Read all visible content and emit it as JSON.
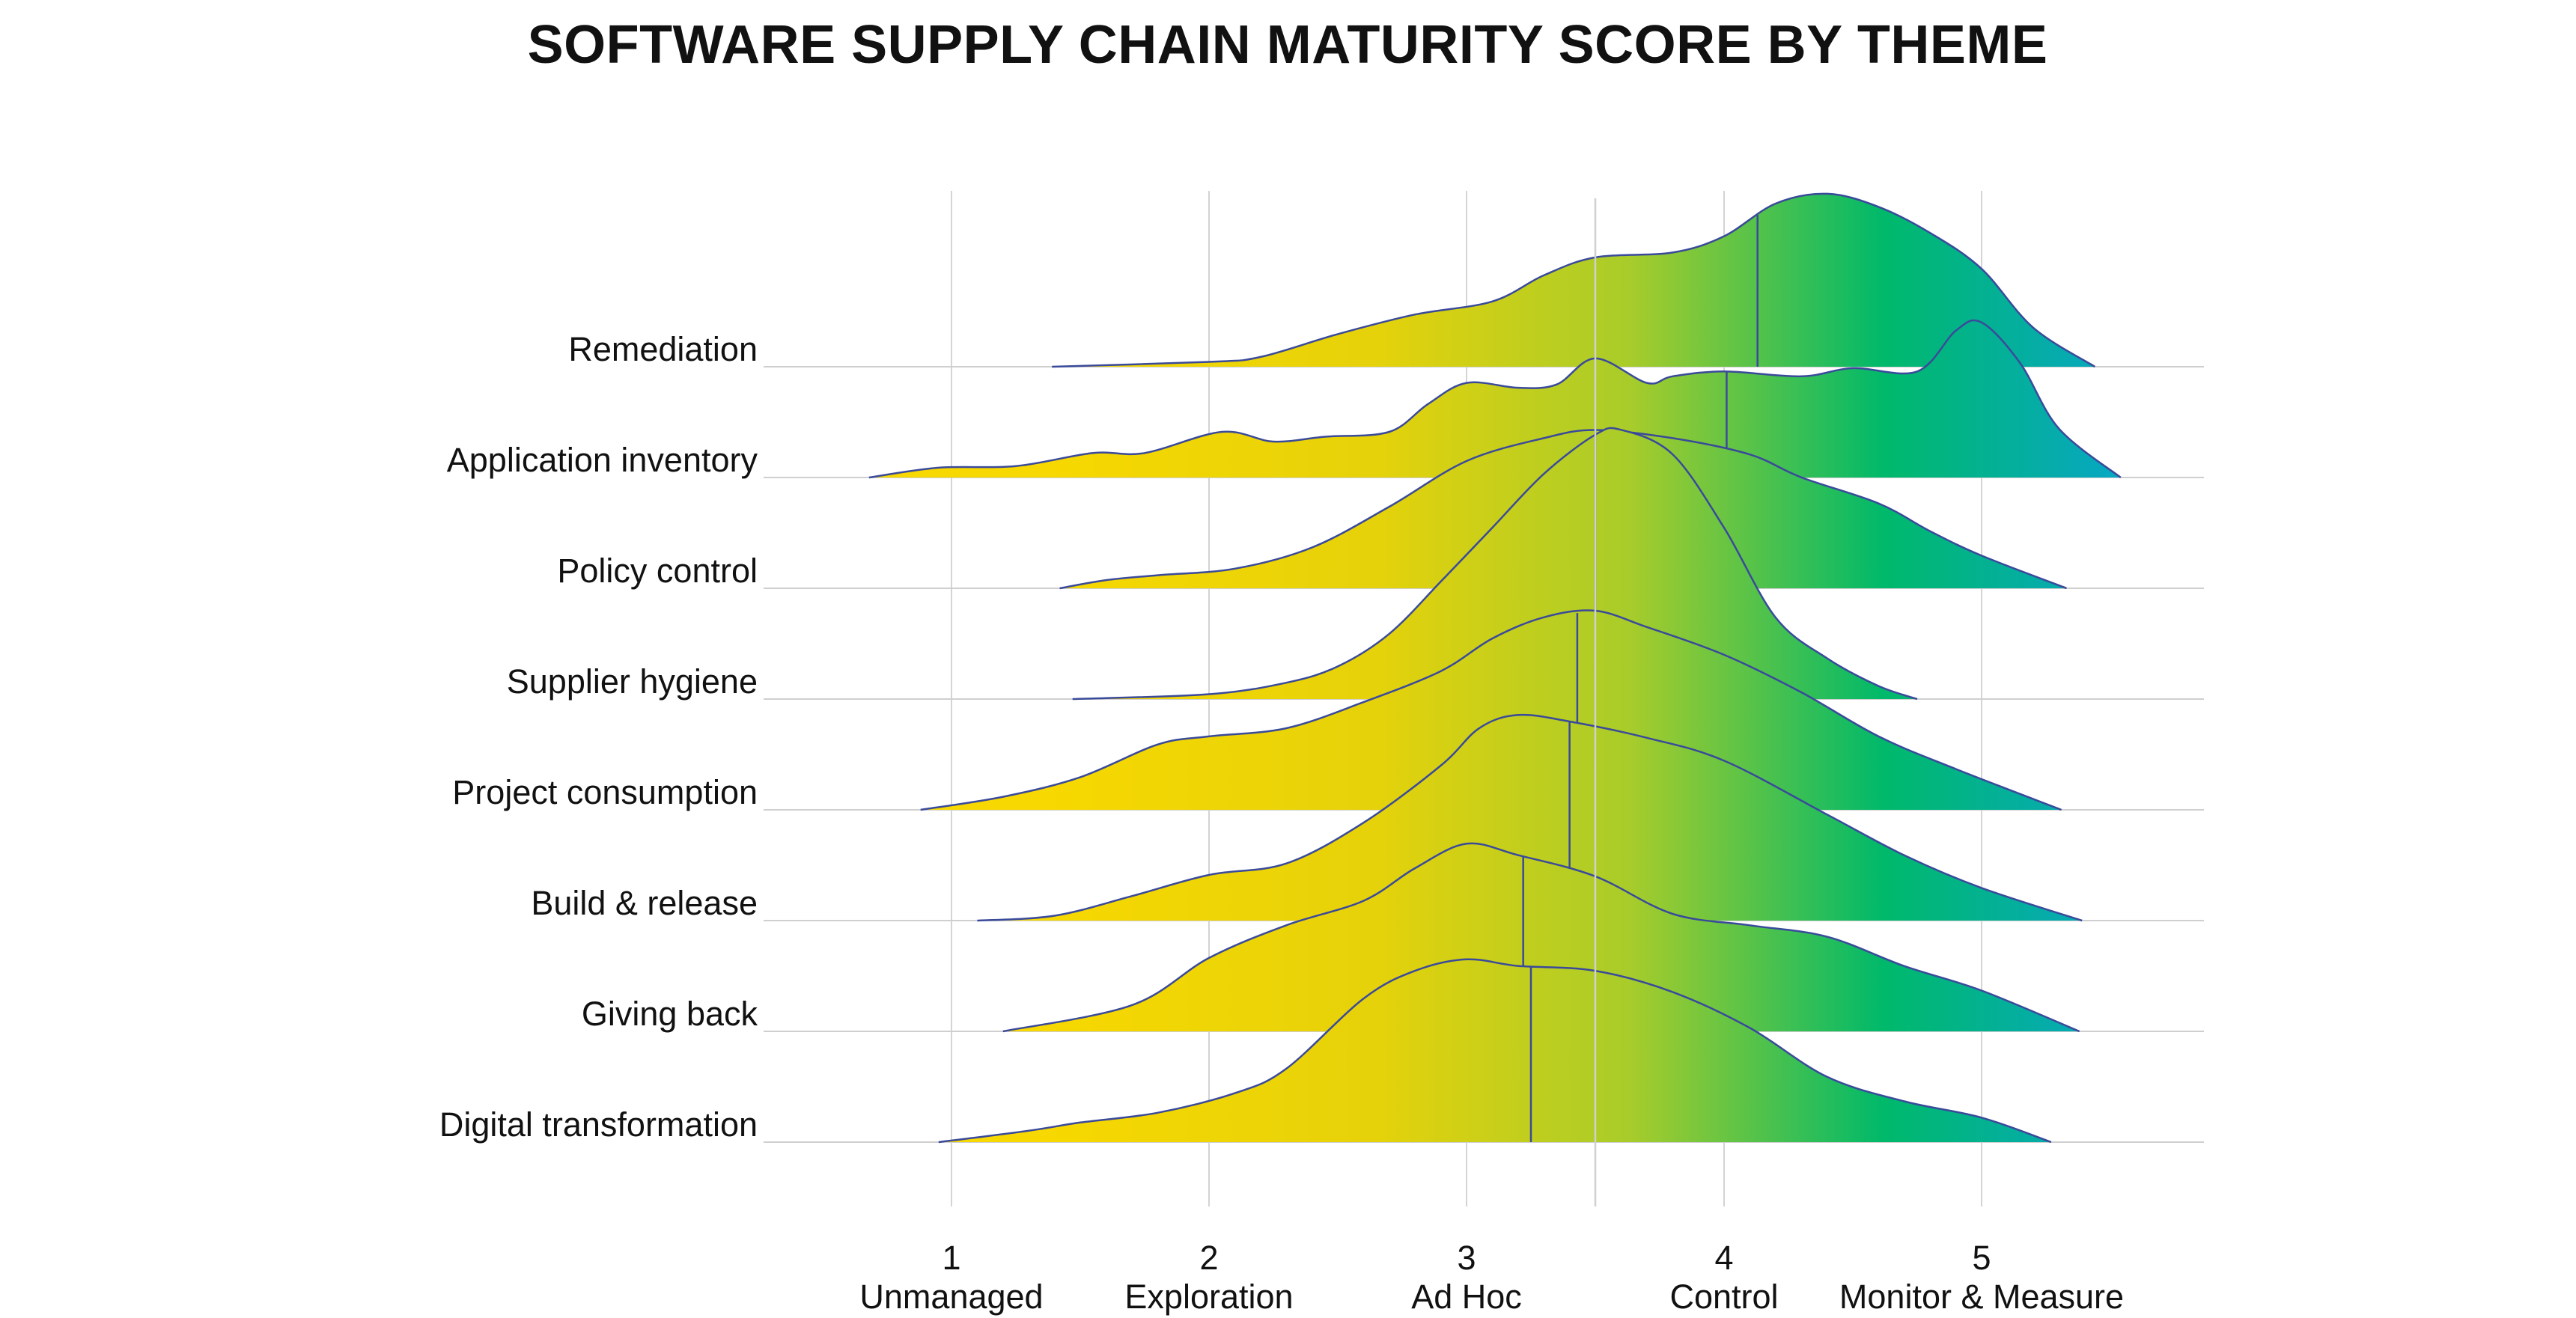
{
  "chart_data": {
    "type": "ridgeline",
    "title": "SOFTWARE SUPPLY CHAIN MATURITY SCORE BY THEME",
    "xlim": [
      0.5,
      5.9
    ],
    "x_ticks": [
      {
        "value": 1,
        "number": "1",
        "name": "Unmanaged"
      },
      {
        "value": 2,
        "number": "2",
        "name": "Exploration"
      },
      {
        "value": 3,
        "number": "3",
        "name": "Ad Hoc"
      },
      {
        "value": 4,
        "number": "4",
        "name": "Control"
      },
      {
        "value": 5,
        "number": "5",
        "name": "Monitor & Measure"
      }
    ],
    "reference_line": 3.5,
    "grid": "vertical",
    "gradient_colors": [
      "#f7d800",
      "#8ec63f",
      "#00b96a",
      "#0aa0e6"
    ],
    "outline_color": "#3a4a9a",
    "series": [
      {
        "label": "Remediation",
        "median": 4.13,
        "density": [
          [
            1.39,
            0.0
          ],
          [
            2.0,
            0.03
          ],
          [
            2.2,
            0.06
          ],
          [
            2.5,
            0.2
          ],
          [
            2.8,
            0.32
          ],
          [
            3.1,
            0.4
          ],
          [
            3.3,
            0.56
          ],
          [
            3.5,
            0.67
          ],
          [
            3.8,
            0.7
          ],
          [
            4.0,
            0.8
          ],
          [
            4.2,
            1.0
          ],
          [
            4.4,
            1.06
          ],
          [
            4.6,
            0.98
          ],
          [
            4.8,
            0.82
          ],
          [
            5.0,
            0.6
          ],
          [
            5.2,
            0.24
          ],
          [
            5.44,
            0.0
          ]
        ]
      },
      {
        "label": "Application inventory",
        "median": 4.01,
        "density": [
          [
            0.68,
            0.0
          ],
          [
            0.95,
            0.06
          ],
          [
            1.25,
            0.07
          ],
          [
            1.55,
            0.15
          ],
          [
            1.75,
            0.15
          ],
          [
            2.05,
            0.28
          ],
          [
            2.25,
            0.22
          ],
          [
            2.45,
            0.25
          ],
          [
            2.7,
            0.28
          ],
          [
            2.85,
            0.45
          ],
          [
            3.0,
            0.58
          ],
          [
            3.2,
            0.55
          ],
          [
            3.35,
            0.57
          ],
          [
            3.5,
            0.73
          ],
          [
            3.7,
            0.58
          ],
          [
            3.8,
            0.62
          ],
          [
            4.0,
            0.65
          ],
          [
            4.3,
            0.62
          ],
          [
            4.5,
            0.67
          ],
          [
            4.75,
            0.65
          ],
          [
            4.9,
            0.9
          ],
          [
            5.0,
            0.95
          ],
          [
            5.15,
            0.7
          ],
          [
            5.3,
            0.3
          ],
          [
            5.54,
            0.0
          ]
        ]
      },
      {
        "label": "Policy control",
        "median": 3.5,
        "density": [
          [
            1.42,
            0.0
          ],
          [
            1.6,
            0.05
          ],
          [
            1.8,
            0.08
          ],
          [
            2.1,
            0.12
          ],
          [
            2.4,
            0.25
          ],
          [
            2.7,
            0.5
          ],
          [
            3.0,
            0.78
          ],
          [
            3.3,
            0.92
          ],
          [
            3.5,
            0.97
          ],
          [
            3.8,
            0.92
          ],
          [
            4.1,
            0.82
          ],
          [
            4.3,
            0.68
          ],
          [
            4.6,
            0.52
          ],
          [
            4.8,
            0.35
          ],
          [
            5.0,
            0.2
          ],
          [
            5.33,
            0.0
          ]
        ]
      },
      {
        "label": "Supplier hygiene",
        "median": 3.5,
        "density": [
          [
            1.47,
            0.0
          ],
          [
            2.0,
            0.03
          ],
          [
            2.3,
            0.1
          ],
          [
            2.5,
            0.2
          ],
          [
            2.7,
            0.4
          ],
          [
            2.9,
            0.72
          ],
          [
            3.1,
            1.05
          ],
          [
            3.3,
            1.38
          ],
          [
            3.5,
            1.62
          ],
          [
            3.6,
            1.65
          ],
          [
            3.8,
            1.5
          ],
          [
            4.0,
            1.05
          ],
          [
            4.2,
            0.5
          ],
          [
            4.4,
            0.25
          ],
          [
            4.6,
            0.08
          ],
          [
            4.75,
            0.0
          ]
        ]
      },
      {
        "label": "Project consumption",
        "median": 3.43,
        "density": [
          [
            0.88,
            0.0
          ],
          [
            1.2,
            0.08
          ],
          [
            1.5,
            0.2
          ],
          [
            1.8,
            0.4
          ],
          [
            2.0,
            0.45
          ],
          [
            2.3,
            0.5
          ],
          [
            2.6,
            0.66
          ],
          [
            2.9,
            0.85
          ],
          [
            3.1,
            1.05
          ],
          [
            3.3,
            1.18
          ],
          [
            3.5,
            1.22
          ],
          [
            3.7,
            1.12
          ],
          [
            4.0,
            0.95
          ],
          [
            4.3,
            0.72
          ],
          [
            4.6,
            0.45
          ],
          [
            4.9,
            0.25
          ],
          [
            5.31,
            0.0
          ]
        ]
      },
      {
        "label": "Build & release",
        "median": 3.4,
        "density": [
          [
            1.1,
            0.0
          ],
          [
            1.4,
            0.03
          ],
          [
            1.7,
            0.15
          ],
          [
            2.0,
            0.28
          ],
          [
            2.3,
            0.35
          ],
          [
            2.6,
            0.6
          ],
          [
            2.9,
            0.95
          ],
          [
            3.05,
            1.18
          ],
          [
            3.2,
            1.26
          ],
          [
            3.4,
            1.22
          ],
          [
            3.7,
            1.12
          ],
          [
            4.0,
            0.98
          ],
          [
            4.4,
            0.65
          ],
          [
            4.7,
            0.4
          ],
          [
            5.0,
            0.2
          ],
          [
            5.39,
            0.0
          ]
        ]
      },
      {
        "label": "Giving back",
        "median": 3.22,
        "density": [
          [
            1.2,
            0.0
          ],
          [
            1.7,
            0.16
          ],
          [
            2.0,
            0.45
          ],
          [
            2.3,
            0.65
          ],
          [
            2.6,
            0.8
          ],
          [
            2.8,
            1.0
          ],
          [
            3.0,
            1.15
          ],
          [
            3.2,
            1.08
          ],
          [
            3.5,
            0.95
          ],
          [
            3.8,
            0.72
          ],
          [
            4.1,
            0.65
          ],
          [
            4.4,
            0.58
          ],
          [
            4.7,
            0.4
          ],
          [
            5.0,
            0.25
          ],
          [
            5.38,
            0.0
          ]
        ]
      },
      {
        "label": "Digital transformation",
        "median": 3.25,
        "density": [
          [
            0.95,
            0.0
          ],
          [
            1.3,
            0.07
          ],
          [
            1.5,
            0.12
          ],
          [
            1.8,
            0.18
          ],
          [
            2.1,
            0.3
          ],
          [
            2.3,
            0.45
          ],
          [
            2.6,
            0.88
          ],
          [
            2.8,
            1.05
          ],
          [
            3.0,
            1.12
          ],
          [
            3.2,
            1.08
          ],
          [
            3.5,
            1.05
          ],
          [
            3.8,
            0.92
          ],
          [
            4.1,
            0.7
          ],
          [
            4.4,
            0.4
          ],
          [
            4.7,
            0.25
          ],
          [
            5.0,
            0.15
          ],
          [
            5.27,
            0.0
          ]
        ]
      }
    ]
  }
}
